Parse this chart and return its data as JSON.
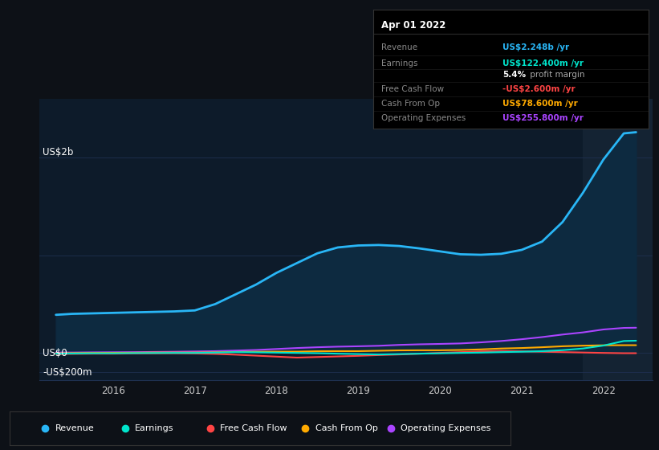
{
  "bg_color": "#0d1117",
  "plot_bg_color": "#0d1b2a",
  "grid_color": "#1e3050",
  "ylim_min": -280,
  "ylim_max": 2600,
  "xlim_start": 2015.1,
  "xlim_end": 2022.6,
  "series": {
    "revenue": {
      "color": "#29b6f6",
      "fill_color": "#0d2a40",
      "lw": 2.0,
      "x": [
        2015.3,
        2015.5,
        2015.75,
        2016.0,
        2016.25,
        2016.5,
        2016.75,
        2017.0,
        2017.25,
        2017.5,
        2017.75,
        2018.0,
        2018.25,
        2018.5,
        2018.75,
        2019.0,
        2019.25,
        2019.5,
        2019.75,
        2020.0,
        2020.25,
        2020.5,
        2020.75,
        2021.0,
        2021.25,
        2021.5,
        2021.75,
        2022.0,
        2022.25,
        2022.4
      ],
      "y": [
        390,
        400,
        405,
        410,
        415,
        420,
        425,
        435,
        500,
        600,
        700,
        820,
        920,
        1020,
        1080,
        1100,
        1105,
        1095,
        1070,
        1040,
        1010,
        1005,
        1015,
        1055,
        1140,
        1340,
        1640,
        1980,
        2248,
        2260
      ]
    },
    "earnings": {
      "color": "#00e5cc",
      "lw": 1.5,
      "x": [
        2015.3,
        2015.5,
        2015.75,
        2016.0,
        2016.25,
        2016.5,
        2016.75,
        2017.0,
        2017.25,
        2017.5,
        2017.75,
        2018.0,
        2018.25,
        2018.5,
        2018.75,
        2019.0,
        2019.25,
        2019.5,
        2019.75,
        2020.0,
        2020.25,
        2020.5,
        2020.75,
        2021.0,
        2021.25,
        2021.5,
        2021.75,
        2022.0,
        2022.25,
        2022.4
      ],
      "y": [
        -8,
        -6,
        -4,
        -4,
        -2,
        -1,
        0,
        0,
        3,
        8,
        6,
        3,
        0,
        -3,
        -8,
        -12,
        -16,
        -12,
        -8,
        -4,
        0,
        3,
        8,
        12,
        18,
        28,
        45,
        75,
        122,
        125
      ]
    },
    "free_cash_flow": {
      "color": "#ff4444",
      "lw": 1.5,
      "x": [
        2015.3,
        2015.5,
        2015.75,
        2016.0,
        2016.25,
        2016.5,
        2016.75,
        2017.0,
        2017.25,
        2017.5,
        2017.75,
        2018.0,
        2018.25,
        2018.5,
        2018.75,
        2019.0,
        2019.25,
        2019.5,
        2019.75,
        2020.0,
        2020.25,
        2020.5,
        2020.75,
        2021.0,
        2021.25,
        2021.5,
        2021.75,
        2022.0,
        2022.25,
        2022.4
      ],
      "y": [
        -12,
        -10,
        -8,
        -8,
        -6,
        -5,
        -4,
        -6,
        -10,
        -18,
        -28,
        -38,
        -48,
        -42,
        -36,
        -30,
        -22,
        -16,
        -8,
        0,
        8,
        16,
        20,
        16,
        12,
        8,
        4,
        0,
        -3,
        -3
      ]
    },
    "cash_from_op": {
      "color": "#ffaa00",
      "lw": 1.5,
      "x": [
        2015.3,
        2015.5,
        2015.75,
        2016.0,
        2016.25,
        2016.5,
        2016.75,
        2017.0,
        2017.25,
        2017.5,
        2017.75,
        2018.0,
        2018.25,
        2018.5,
        2018.75,
        2019.0,
        2019.25,
        2019.5,
        2019.75,
        2020.0,
        2020.25,
        2020.5,
        2020.75,
        2021.0,
        2021.25,
        2021.5,
        2021.75,
        2022.0,
        2022.25,
        2022.4
      ],
      "y": [
        -4,
        -2,
        0,
        1,
        2,
        4,
        4,
        4,
        6,
        10,
        12,
        13,
        13,
        17,
        18,
        18,
        22,
        26,
        27,
        27,
        30,
        36,
        45,
        50,
        58,
        68,
        74,
        78,
        79,
        79
      ]
    },
    "operating_expenses": {
      "color": "#aa44ff",
      "lw": 1.5,
      "x": [
        2015.3,
        2015.5,
        2015.75,
        2016.0,
        2016.25,
        2016.5,
        2016.75,
        2017.0,
        2017.25,
        2017.5,
        2017.75,
        2018.0,
        2018.25,
        2018.5,
        2018.75,
        2019.0,
        2019.25,
        2019.5,
        2019.75,
        2020.0,
        2020.25,
        2020.5,
        2020.75,
        2021.0,
        2021.25,
        2021.5,
        2021.75,
        2022.0,
        2022.25,
        2022.4
      ],
      "y": [
        4,
        4,
        6,
        7,
        8,
        10,
        12,
        15,
        18,
        24,
        30,
        40,
        50,
        58,
        64,
        68,
        73,
        82,
        88,
        92,
        97,
        108,
        122,
        140,
        162,
        188,
        210,
        240,
        256,
        258
      ]
    }
  },
  "highlight_x_start": 2021.75,
  "highlight_x_end": 2022.6,
  "legend": [
    {
      "label": "Revenue",
      "color": "#29b6f6"
    },
    {
      "label": "Earnings",
      "color": "#00e5cc"
    },
    {
      "label": "Free Cash Flow",
      "color": "#ff4444"
    },
    {
      "label": "Cash From Op",
      "color": "#ffaa00"
    },
    {
      "label": "Operating Expenses",
      "color": "#aa44ff"
    }
  ],
  "tooltip": {
    "title": "Apr 01 2022",
    "title_color": "#ffffff",
    "bg_color": "#000000",
    "border_color": "#333333",
    "rows": [
      {
        "label": "Revenue",
        "label_color": "#888888",
        "value": "US$2.248b /yr",
        "value_color": "#29b6f6"
      },
      {
        "label": "Earnings",
        "label_color": "#888888",
        "value": "US$122.400m /yr",
        "value_color": "#00e5cc"
      },
      {
        "label": "",
        "label_color": "#888888",
        "value1": "5.4%",
        "value1_color": "#ffffff",
        "value2": " profit margin",
        "value2_color": "#aaaaaa"
      },
      {
        "label": "Free Cash Flow",
        "label_color": "#888888",
        "value": "-US$2.600m /yr",
        "value_color": "#ff4444"
      },
      {
        "label": "Cash From Op",
        "label_color": "#888888",
        "value": "US$78.600m /yr",
        "value_color": "#ffaa00"
      },
      {
        "label": "Operating Expenses",
        "label_color": "#888888",
        "value": "US$255.800m /yr",
        "value_color": "#aa44ff"
      }
    ]
  }
}
